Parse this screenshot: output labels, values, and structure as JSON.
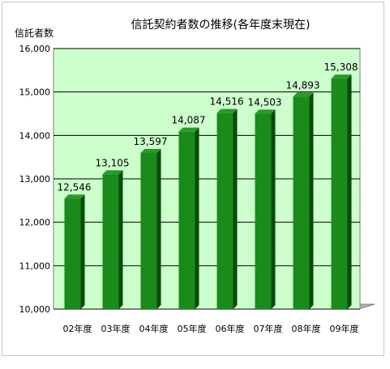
{
  "chart_data": {
    "type": "bar",
    "title": "信託契約者数の推移(各年度末現在)",
    "ylabel": "信託者数",
    "xlabel": "",
    "categories": [
      "02年度",
      "03年度",
      "04年度",
      "05年度",
      "06年度",
      "07年度",
      "08年度",
      "09年度"
    ],
    "values": [
      12546,
      13105,
      13597,
      14087,
      14516,
      14503,
      14893,
      15308
    ],
    "data_labels": [
      "12,546",
      "13,105",
      "13,597",
      "14,087",
      "14,516",
      "14,503",
      "14,893",
      "15,308"
    ],
    "ylim": [
      10000,
      16000
    ],
    "yticks": [
      10000,
      11000,
      12000,
      13000,
      14000,
      15000,
      16000
    ],
    "ytick_labels": [
      "10,000",
      "11,000",
      "12,000",
      "13,000",
      "14,000",
      "15,000",
      "16,000"
    ],
    "grid": true,
    "legend": "none",
    "colors": {
      "plot_background": "#ccffcc",
      "bar_front": "#1a8a1a",
      "bar_side": "#0a4a0a",
      "bar_top": "#2a9a2a",
      "gridline": "#000000"
    }
  }
}
